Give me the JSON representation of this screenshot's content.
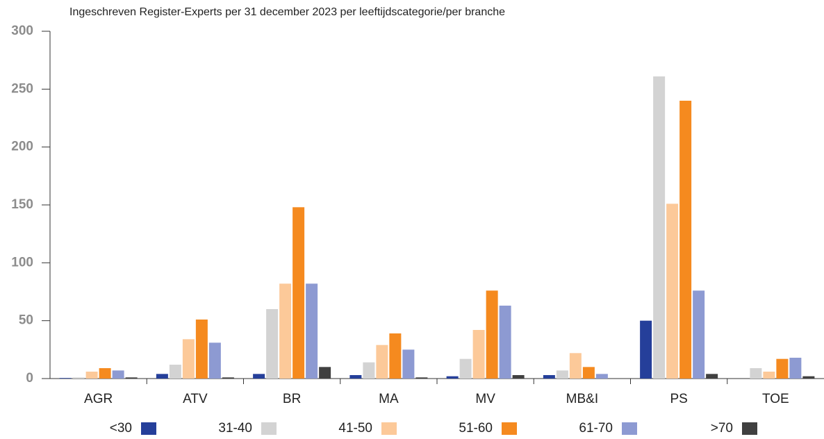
{
  "chart_data": {
    "type": "bar",
    "title": "Ingeschreven Register-Experts per 31 december 2023 per leeftijdscategorie/per branche",
    "categories": [
      "AGR",
      "ATV",
      "BR",
      "MA",
      "MV",
      "MB&I",
      "PS",
      "TOE"
    ],
    "series": [
      {
        "name": "<30",
        "color": "#253f9a",
        "values": [
          0.5,
          4,
          4,
          3,
          2,
          3,
          50,
          0
        ]
      },
      {
        "name": "31-40",
        "color": "#d3d3d3",
        "values": [
          1,
          12,
          60,
          14,
          17,
          7,
          261,
          9
        ]
      },
      {
        "name": "41-50",
        "color": "#fcc999",
        "values": [
          6,
          34,
          82,
          29,
          42,
          22,
          151,
          6
        ]
      },
      {
        "name": "51-60",
        "color": "#f58a1f",
        "values": [
          9,
          51,
          148,
          39,
          76,
          10,
          240,
          17
        ]
      },
      {
        "name": "61-70",
        "color": "#8d9ad2",
        "values": [
          7,
          31,
          82,
          25,
          63,
          4,
          76,
          18
        ]
      },
      {
        "name": ">70",
        "color": "#404040",
        "values": [
          1,
          1,
          10,
          1,
          3,
          0,
          4,
          2
        ]
      }
    ],
    "ylim": [
      0,
      300
    ],
    "yticks": [
      0,
      50,
      100,
      150,
      200,
      250,
      300
    ],
    "legend": "bottom"
  }
}
